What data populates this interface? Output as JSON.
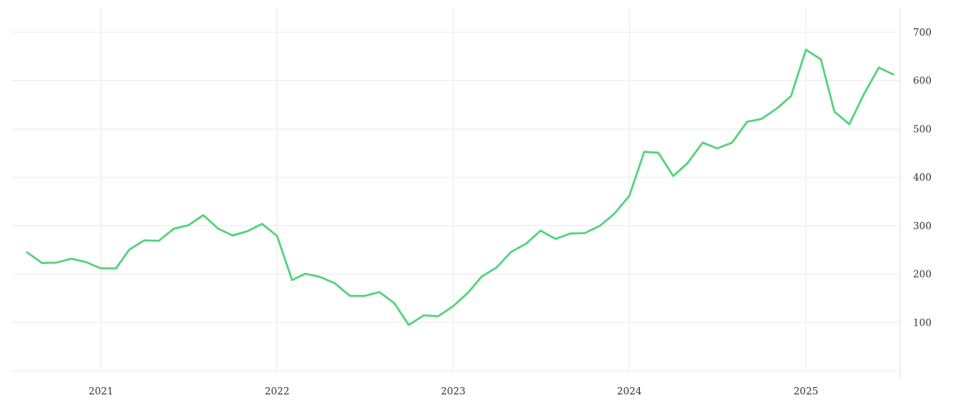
{
  "chart_data": {
    "type": "line",
    "title": "",
    "xlabel": "",
    "ylabel": "",
    "x_ticks": [
      "2021",
      "2022",
      "2023",
      "2024",
      "2025"
    ],
    "y_ticks": [
      100,
      200,
      300,
      400,
      500,
      600,
      700
    ],
    "ylim": [
      0,
      750
    ],
    "xlim": [
      "2020-07-01",
      "2025-07-15"
    ],
    "grid": true,
    "y_axis_position": "right",
    "series": [
      {
        "color": "#52d37a",
        "x": [
          "2020-08-01",
          "2020-09-01",
          "2020-10-01",
          "2020-11-01",
          "2020-12-01",
          "2021-01-01",
          "2021-02-01",
          "2021-03-01",
          "2021-04-01",
          "2021-05-01",
          "2021-06-01",
          "2021-07-01",
          "2021-08-01",
          "2021-09-01",
          "2021-10-01",
          "2021-11-01",
          "2021-12-01",
          "2022-01-01",
          "2022-02-01",
          "2022-03-01",
          "2022-04-01",
          "2022-05-01",
          "2022-06-01",
          "2022-07-01",
          "2022-08-01",
          "2022-09-01",
          "2022-10-01",
          "2022-11-01",
          "2022-12-01",
          "2023-01-01",
          "2023-02-01",
          "2023-03-01",
          "2023-04-01",
          "2023-05-01",
          "2023-06-01",
          "2023-07-01",
          "2023-08-01",
          "2023-09-01",
          "2023-10-01",
          "2023-11-01",
          "2023-12-01",
          "2024-01-01",
          "2024-02-01",
          "2024-03-01",
          "2024-04-01",
          "2024-05-01",
          "2024-06-01",
          "2024-07-01",
          "2024-08-01",
          "2024-09-01",
          "2024-10-01",
          "2024-11-01",
          "2024-12-01",
          "2025-01-01",
          "2025-02-01",
          "2025-03-01",
          "2025-04-01",
          "2025-05-01",
          "2025-06-01",
          "2025-07-01"
        ],
        "values": [
          245,
          223,
          224,
          232,
          225,
          212,
          212,
          251,
          270,
          269,
          294,
          301,
          322,
          294,
          280,
          289,
          304,
          279,
          188,
          201,
          194,
          181,
          155,
          155,
          163,
          140,
          95,
          115,
          113,
          134,
          162,
          195,
          214,
          246,
          263,
          290,
          273,
          284,
          285,
          300,
          325,
          362,
          453,
          451,
          403,
          430,
          472,
          460,
          472,
          515,
          521,
          542,
          568,
          664,
          644,
          536,
          510,
          572,
          627,
          613
        ]
      }
    ]
  }
}
